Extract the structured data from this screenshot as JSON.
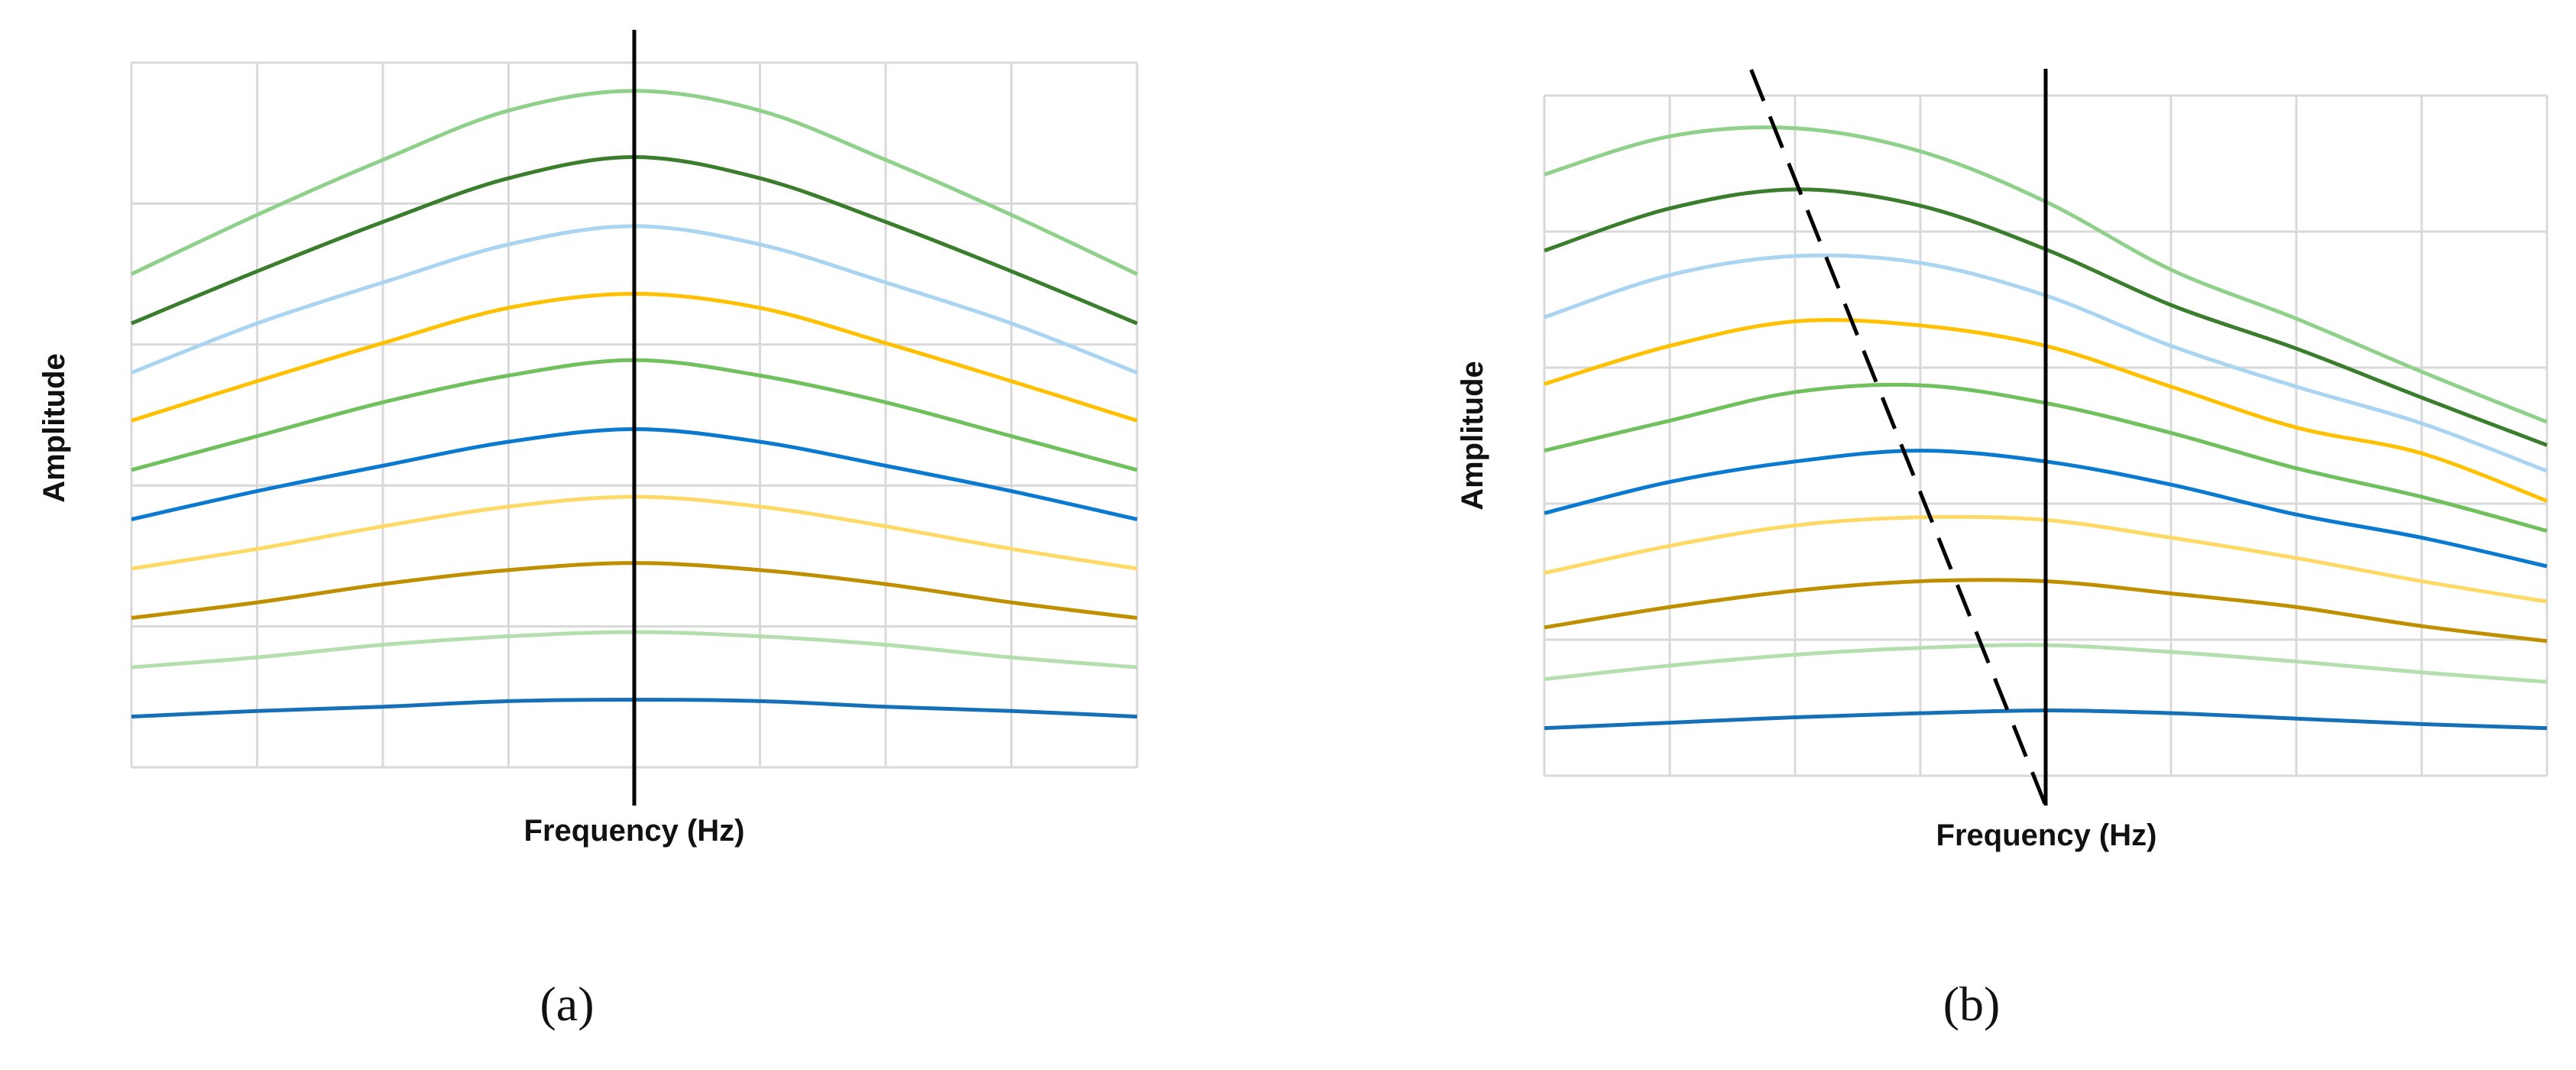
{
  "chart_data": [
    {
      "type": "line",
      "panel_label": "(a)",
      "xlabel": "Frequency (Hz)",
      "ylabel": "Amplitude",
      "xlim": [
        0,
        8
      ],
      "ylim": [
        0,
        5
      ],
      "grid": true,
      "x": [
        0,
        1,
        2,
        3,
        4,
        5,
        6,
        7,
        8
      ],
      "reference_lines": [
        {
          "style": "solid",
          "x": 4
        }
      ],
      "series": [
        {
          "color": "#8fd18a",
          "values": [
            3.5,
            3.92,
            4.31,
            4.66,
            4.8,
            4.66,
            4.31,
            3.92,
            3.5
          ]
        },
        {
          "color": "#3a7d2c",
          "values": [
            3.15,
            3.52,
            3.87,
            4.18,
            4.33,
            4.18,
            3.87,
            3.52,
            3.15
          ]
        },
        {
          "color": "#a9d4f2",
          "values": [
            2.8,
            3.15,
            3.44,
            3.71,
            3.84,
            3.71,
            3.44,
            3.15,
            2.8
          ]
        },
        {
          "color": "#ffc000",
          "values": [
            2.46,
            2.74,
            3.01,
            3.26,
            3.36,
            3.26,
            3.01,
            2.74,
            2.46
          ]
        },
        {
          "color": "#70c05e",
          "values": [
            2.11,
            2.35,
            2.59,
            2.78,
            2.89,
            2.78,
            2.59,
            2.35,
            2.11
          ]
        },
        {
          "color": "#0a7ad0",
          "values": [
            1.76,
            1.96,
            2.14,
            2.31,
            2.4,
            2.31,
            2.14,
            1.96,
            1.76
          ]
        },
        {
          "color": "#ffd966",
          "values": [
            1.41,
            1.55,
            1.71,
            1.85,
            1.92,
            1.85,
            1.71,
            1.55,
            1.41
          ]
        },
        {
          "color": "#bf8f00",
          "values": [
            1.06,
            1.17,
            1.3,
            1.4,
            1.45,
            1.4,
            1.3,
            1.17,
            1.06
          ]
        },
        {
          "color": "#b4deae",
          "values": [
            0.71,
            0.78,
            0.87,
            0.93,
            0.96,
            0.93,
            0.87,
            0.78,
            0.71
          ]
        },
        {
          "color": "#1570b8",
          "values": [
            0.36,
            0.4,
            0.43,
            0.47,
            0.48,
            0.47,
            0.43,
            0.4,
            0.36
          ]
        }
      ]
    },
    {
      "type": "line",
      "panel_label": "(b)",
      "xlabel": "Frequency (Hz)",
      "ylabel": "Amplitude",
      "xlim": [
        0,
        8
      ],
      "ylim": [
        0,
        5
      ],
      "grid": true,
      "x": [
        0,
        1,
        2,
        3,
        4,
        5,
        6,
        7,
        8
      ],
      "reference_lines": [
        {
          "style": "solid",
          "x": 4
        },
        {
          "style": "dashed",
          "from": [
            1.65,
            5.19
          ],
          "to": [
            4,
            -0.22
          ]
        }
      ],
      "series": [
        {
          "color": "#8fd18a",
          "values": [
            4.42,
            4.7,
            4.76,
            4.59,
            4.22,
            3.72,
            3.36,
            2.97,
            2.6
          ]
        },
        {
          "color": "#3a7d2c",
          "values": [
            3.86,
            4.17,
            4.31,
            4.19,
            3.87,
            3.46,
            3.14,
            2.78,
            2.43
          ]
        },
        {
          "color": "#a9d4f2",
          "values": [
            3.37,
            3.68,
            3.82,
            3.77,
            3.53,
            3.16,
            2.86,
            2.59,
            2.24
          ]
        },
        {
          "color": "#ffc000",
          "values": [
            2.88,
            3.16,
            3.34,
            3.31,
            3.16,
            2.86,
            2.56,
            2.37,
            2.02
          ]
        },
        {
          "color": "#70c05e",
          "values": [
            2.39,
            2.61,
            2.82,
            2.87,
            2.74,
            2.52,
            2.26,
            2.05,
            1.8
          ]
        },
        {
          "color": "#0a7ad0",
          "values": [
            1.93,
            2.16,
            2.31,
            2.39,
            2.31,
            2.14,
            1.92,
            1.75,
            1.54
          ]
        },
        {
          "color": "#ffd966",
          "values": [
            1.49,
            1.69,
            1.84,
            1.9,
            1.88,
            1.75,
            1.6,
            1.43,
            1.28
          ]
        },
        {
          "color": "#bf8f00",
          "values": [
            1.09,
            1.24,
            1.36,
            1.43,
            1.43,
            1.34,
            1.24,
            1.1,
            0.99
          ]
        },
        {
          "color": "#b4deae",
          "values": [
            0.71,
            0.81,
            0.89,
            0.94,
            0.96,
            0.91,
            0.84,
            0.76,
            0.69
          ]
        },
        {
          "color": "#1570b8",
          "values": [
            0.35,
            0.39,
            0.43,
            0.46,
            0.48,
            0.46,
            0.42,
            0.38,
            0.35
          ]
        }
      ]
    }
  ]
}
